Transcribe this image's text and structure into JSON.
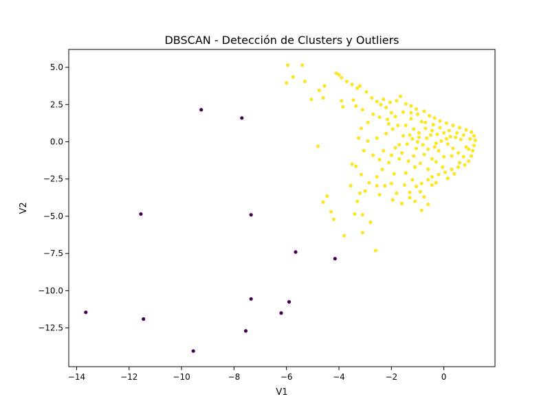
{
  "chart_data": {
    "type": "scatter",
    "title": "DBSCAN - Detección de Clusters y Outliers",
    "xlabel": "V1",
    "ylabel": "V2",
    "xlim": [
      -14.3,
      1.95
    ],
    "ylim": [
      -15.1,
      6.2
    ],
    "x_ticks": [
      -14,
      -12,
      -10,
      -8,
      -6,
      -4,
      -2,
      0
    ],
    "x_tick_labels": [
      "−14",
      "−12",
      "−10",
      "−8",
      "−6",
      "−4",
      "−2",
      "0"
    ],
    "y_ticks": [
      5.0,
      2.5,
      0.0,
      -2.5,
      -5.0,
      -7.5,
      -10.0,
      -12.5
    ],
    "y_tick_labels": [
      "5.0",
      "2.5",
      "0.0",
      "−2.5",
      "−5.0",
      "−7.5",
      "−10.0",
      "−12.5"
    ],
    "grid": false,
    "legend": "none",
    "colors": {
      "cluster": "#fde725",
      "outlier": "#440154"
    },
    "series": [
      {
        "values": [
          [
            -13.65,
            -11.45
          ],
          [
            -11.55,
            -4.85
          ],
          [
            -11.45,
            -11.9
          ],
          [
            -9.55,
            -14.05
          ],
          [
            -9.25,
            2.15
          ],
          [
            -7.7,
            1.6
          ],
          [
            -7.55,
            -12.7
          ],
          [
            -7.35,
            -4.9
          ],
          [
            -7.35,
            -10.55
          ],
          [
            -6.2,
            -11.5
          ],
          [
            -5.9,
            -10.75
          ],
          [
            -5.65,
            -7.4
          ],
          [
            -4.15,
            -7.85
          ]
        ]
      },
      {
        "values": [
          [
            -5.95,
            5.15
          ],
          [
            -5.4,
            5.15
          ],
          [
            -5.75,
            4.35
          ],
          [
            -6.0,
            3.95
          ],
          [
            -5.3,
            4.05
          ],
          [
            -4.75,
            3.45
          ],
          [
            -4.55,
            3.75
          ],
          [
            -5.05,
            2.85
          ],
          [
            -4.6,
            2.95
          ],
          [
            -4.8,
            -0.3
          ],
          [
            -4.6,
            -4.05
          ],
          [
            -4.45,
            -3.65
          ],
          [
            -4.3,
            -4.7
          ],
          [
            -4.2,
            -5.2
          ],
          [
            -3.8,
            -6.3
          ],
          [
            -3.1,
            -6.1
          ],
          [
            -2.6,
            -7.3
          ],
          [
            -2.8,
            -5.4
          ],
          [
            -3.1,
            -4.9
          ],
          [
            -3.4,
            -4.85
          ],
          [
            -4.1,
            4.6
          ],
          [
            -4.0,
            4.5
          ],
          [
            -3.9,
            4.3
          ],
          [
            -3.7,
            4.05
          ],
          [
            -3.5,
            3.85
          ],
          [
            -3.3,
            3.6
          ],
          [
            -3.45,
            2.8
          ],
          [
            -3.9,
            2.75
          ],
          [
            -3.85,
            2.35
          ],
          [
            -3.35,
            2.4
          ],
          [
            -3.1,
            2.15
          ],
          [
            -3.2,
            3.75
          ],
          [
            -2.95,
            3.35
          ],
          [
            -2.75,
            2.95
          ],
          [
            -2.55,
            2.7
          ],
          [
            -2.4,
            2.5
          ],
          [
            -2.2,
            2.3
          ],
          [
            -2.05,
            2.65
          ],
          [
            -2.3,
            2.85
          ],
          [
            -1.8,
            2.75
          ],
          [
            -1.65,
            3.05
          ],
          [
            -1.45,
            2.55
          ],
          [
            -1.25,
            2.4
          ],
          [
            -1.05,
            2.2
          ],
          [
            -1.25,
            1.95
          ],
          [
            -1.55,
            2.0
          ],
          [
            -1.85,
            1.7
          ],
          [
            -2.0,
            1.95
          ],
          [
            -2.15,
            1.5
          ],
          [
            -2.45,
            1.65
          ],
          [
            -2.7,
            1.85
          ],
          [
            -2.9,
            1.3
          ],
          [
            -3.15,
            0.9
          ],
          [
            -3.25,
            0.25
          ],
          [
            -2.9,
            0.05
          ],
          [
            -3.05,
            -0.6
          ],
          [
            -3.5,
            -1.5
          ],
          [
            -3.35,
            -1.65
          ],
          [
            -3.15,
            -2.2
          ],
          [
            -3.55,
            -2.95
          ],
          [
            -3.2,
            -3.45
          ],
          [
            -3.3,
            -4.0
          ],
          [
            -3.0,
            -3.3
          ],
          [
            -2.85,
            -2.75
          ],
          [
            -2.55,
            -2.95
          ],
          [
            -2.45,
            -3.55
          ],
          [
            -2.25,
            -2.95
          ],
          [
            -2.55,
            -2.35
          ],
          [
            -2.35,
            -1.85
          ],
          [
            -2.1,
            -1.4
          ],
          [
            -2.45,
            -1.2
          ],
          [
            -2.7,
            -0.9
          ],
          [
            -2.3,
            -0.6
          ],
          [
            -2.55,
            0.25
          ],
          [
            -2.2,
            0.55
          ],
          [
            -1.95,
            0.85
          ],
          [
            -2.1,
            1.2
          ],
          [
            -1.75,
            1.1
          ],
          [
            -1.85,
            -0.4
          ],
          [
            -2.0,
            -0.9
          ],
          [
            -1.7,
            -1.15
          ],
          [
            -1.9,
            -2.15
          ],
          [
            -2.0,
            -2.8
          ],
          [
            -1.8,
            -3.45
          ],
          [
            -1.95,
            -3.9
          ],
          [
            -1.6,
            -4.15
          ],
          [
            -1.3,
            -3.4
          ],
          [
            -1.5,
            -2.9
          ],
          [
            -1.2,
            -2.55
          ],
          [
            -1.45,
            -2.1
          ],
          [
            -1.1,
            -1.7
          ],
          [
            -1.35,
            -1.3
          ],
          [
            -1.6,
            -0.75
          ],
          [
            -1.7,
            -0.2
          ],
          [
            -1.55,
            0.4
          ],
          [
            -1.45,
            1.1
          ],
          [
            -1.25,
            1.55
          ],
          [
            -1.0,
            1.85
          ],
          [
            -0.75,
            2.05
          ],
          [
            -0.55,
            1.75
          ],
          [
            -0.35,
            1.6
          ],
          [
            -0.15,
            1.4
          ],
          [
            0.1,
            1.25
          ],
          [
            0.35,
            1.1
          ],
          [
            0.6,
            0.95
          ],
          [
            0.85,
            0.8
          ],
          [
            1.05,
            0.65
          ],
          [
            1.15,
            0.4
          ],
          [
            1.2,
            0.1
          ],
          [
            1.15,
            -0.25
          ],
          [
            1.1,
            -0.6
          ],
          [
            1.05,
            -0.95
          ],
          [
            0.95,
            -1.3
          ],
          [
            0.8,
            -1.55
          ],
          [
            0.55,
            -1.7
          ],
          [
            0.3,
            -1.85
          ],
          [
            0.05,
            -2.05
          ],
          [
            -0.2,
            -2.2
          ],
          [
            -0.45,
            -2.35
          ],
          [
            -0.6,
            -2.55
          ],
          [
            -0.85,
            -2.8
          ],
          [
            -1.05,
            -3.0
          ],
          [
            -0.9,
            -3.35
          ],
          [
            -0.75,
            -3.7
          ],
          [
            -0.6,
            -4.2
          ],
          [
            -0.85,
            -4.6
          ],
          [
            -1.1,
            -4.0
          ],
          [
            -1.3,
            -3.75
          ],
          [
            -0.3,
            -2.75
          ],
          [
            -0.45,
            -2.9
          ],
          [
            0.15,
            -2.45
          ],
          [
            0.4,
            -2.15
          ],
          [
            -0.05,
            -1.7
          ],
          [
            0.6,
            -1.4
          ],
          [
            -0.3,
            -0.1
          ],
          [
            -0.5,
            0.45
          ],
          [
            -0.7,
            0.9
          ],
          [
            -0.95,
            0.3
          ],
          [
            -1.05,
            -0.45
          ],
          [
            -0.75,
            -0.85
          ],
          [
            -0.45,
            -1.15
          ],
          [
            -0.2,
            -0.6
          ],
          [
            0.1,
            0.2
          ],
          [
            0.35,
            -0.45
          ],
          [
            0.65,
            0.15
          ],
          [
            0.85,
            -0.35
          ],
          [
            0.5,
            0.6
          ],
          [
            0.2,
            0.75
          ],
          [
            -0.15,
            0.95
          ],
          [
            -0.4,
            1.15
          ],
          [
            -0.85,
            1.35
          ],
          [
            -1.15,
            0.85
          ],
          [
            -1.3,
            0.45
          ],
          [
            -1.4,
            -0.15
          ],
          [
            -1.15,
            -0.95
          ],
          [
            -0.9,
            -1.45
          ],
          [
            -0.6,
            -1.85
          ],
          [
            -0.3,
            -1.35
          ],
          [
            0.0,
            -1.0
          ],
          [
            0.3,
            -0.95
          ],
          [
            0.55,
            -0.75
          ],
          [
            0.75,
            -1.0
          ],
          [
            0.95,
            -0.5
          ],
          [
            1.0,
            0.2
          ],
          [
            0.75,
            0.45
          ],
          [
            0.45,
            0.3
          ],
          [
            0.15,
            -0.15
          ],
          [
            -0.1,
            0.05
          ],
          [
            -0.35,
            -0.35
          ],
          [
            -0.6,
            -0.5
          ],
          [
            -0.8,
            -0.2
          ],
          [
            -1.0,
            0.0
          ],
          [
            -1.2,
            0.2
          ],
          [
            -0.95,
            0.6
          ],
          [
            -0.65,
            0.25
          ],
          [
            -0.45,
            0.75
          ],
          [
            -0.25,
            0.5
          ],
          [
            0.0,
            0.6
          ],
          [
            0.25,
            0.35
          ],
          [
            -0.7,
            1.3
          ]
        ]
      }
    ]
  }
}
